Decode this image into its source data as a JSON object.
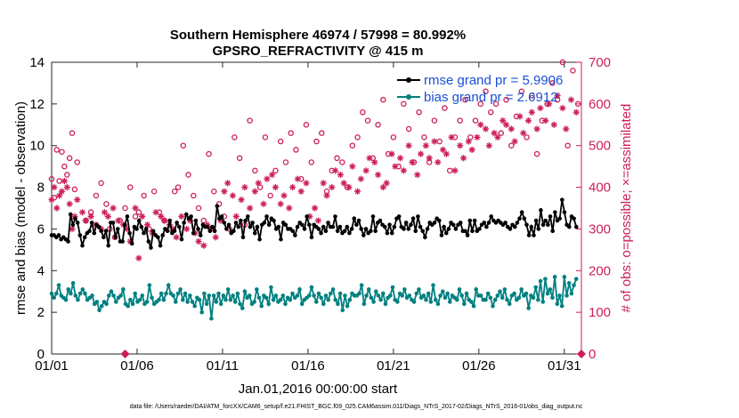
{
  "chart_data": {
    "type": "line",
    "title": "Southern Hemisphere 46974 / 57998 = 80.992%",
    "subtitle": "GPSRO_REFRACTIVITY @ 415 m",
    "xlabel": "Jan.01,2016 00:00:00 start",
    "ylabel_left": "rmse and bias (model - observation)",
    "ylabel_right": "# of obs: o=possible; ×=assimilated",
    "footnote": "data file: /Users/raeder/DAI/ATM_forcXX/CAM6_setup/f.e21.FHIST_BGC.f09_025.CAM6assim.011/Diags_NTrS_2017-02/Diags_NTrS_2016-01/obs_diag_output.nc",
    "x_tick_labels": [
      "01/01",
      "01/06",
      "01/11",
      "01/16",
      "01/21",
      "01/26",
      "01/31"
    ],
    "x_tick_days": [
      1,
      6,
      11,
      16,
      21,
      26,
      31
    ],
    "xlim_days": [
      1,
      32
    ],
    "ylim_left": [
      0,
      14
    ],
    "yticks_left": [
      "0",
      "2",
      "4",
      "6",
      "8",
      "10",
      "12",
      "14"
    ],
    "ylim_right": [
      0,
      700
    ],
    "yticks_right": [
      "0",
      "100",
      "200",
      "300",
      "400",
      "500",
      "600",
      "700"
    ],
    "grid": false,
    "legend_position": "top-right",
    "colors": {
      "rmse": "#000000",
      "bias": "#008080",
      "obs": "#cc1f55"
    },
    "series": [
      {
        "name": "rmse grand pr = 5.9906",
        "axis": "left",
        "values": [
          5.7,
          5.7,
          5.6,
          5.7,
          5.5,
          5.6,
          5.5,
          5.4,
          6.7,
          6.2,
          6.5,
          6.3,
          5.7,
          5.2,
          5.6,
          5.8,
          5.9,
          6.3,
          5.8,
          6.2,
          6.1,
          5.9,
          5.6,
          5.9,
          5.2,
          6.3,
          6.3,
          5.6,
          6.0,
          5.4,
          5.4,
          6.2,
          6.6,
          5.8,
          5.3,
          6.1,
          6.0,
          6.4,
          6.1,
          5.8,
          6.0,
          5.4,
          5.1,
          5.9,
          5.7,
          5.6,
          5.2,
          5.7,
          6.0,
          5.9,
          6.4,
          5.8,
          5.9,
          6.3,
          6.1,
          5.5,
          6.3,
          6.7,
          6.5,
          6.6,
          5.8,
          6.4,
          6.0,
          5.7,
          6.2,
          6.1,
          6.1,
          5.9,
          6.1,
          5.9,
          7.1,
          6.5,
          6.6,
          6.3,
          6.0,
          6.2,
          5.8,
          5.9,
          6.3,
          6.1,
          6.4,
          5.6,
          6.4,
          6.6,
          6.1,
          6.3,
          5.8,
          6.1,
          5.5,
          6.2,
          6.3,
          6.6,
          6.2,
          6.5,
          6.4,
          6.0,
          6.1,
          5.5,
          6.3,
          6.2,
          6.0,
          6.0,
          5.9,
          5.7,
          6.1,
          6.3,
          6.2,
          6.0,
          6.6,
          6.2,
          5.6,
          6.2,
          6.1,
          6.0,
          5.8,
          6.1,
          5.9,
          6.3,
          6.1,
          6.1,
          6.6,
          5.9,
          6.1,
          5.8,
          5.9,
          6.1,
          5.8,
          6.0,
          6.5,
          6.2,
          6.4,
          6.0,
          5.7,
          6.0,
          5.8,
          5.9,
          6.6,
          5.9,
          6.3,
          6.4,
          6.2,
          6.1,
          5.8,
          6.2,
          5.8,
          6.1,
          6.5,
          6.6,
          6.1,
          6.0,
          6.3,
          6.0,
          6.2,
          6.5,
          5.9,
          6.6,
          6.1,
          5.9,
          5.6,
          6.0,
          6.3,
          6.2,
          6.3,
          6.5,
          6.4,
          5.7,
          6.1,
          5.8,
          6.0,
          6.3,
          6.2,
          6.0,
          6.2,
          6.3,
          5.9,
          5.9,
          5.7,
          6.4,
          5.9,
          6.4,
          5.9,
          6.0,
          6.2,
          6.3,
          6.1,
          6.3,
          6.6,
          6.4,
          6.3,
          6.4,
          6.3,
          6.2,
          6.3,
          6.1,
          6.0,
          6.2,
          6.1,
          6.3,
          6.5,
          6.8,
          6.5,
          6.2,
          5.7,
          6.1,
          5.7,
          6.4,
          6.0,
          6.9,
          6.2,
          6.4,
          6.2,
          6.6,
          5.9,
          6.8,
          6.4,
          6.5,
          7.4,
          6.8,
          6.2,
          6.1,
          6.6,
          6.5,
          6.1
        ]
      },
      {
        "name": "bias grand pr = 2.6912",
        "axis": "left",
        "values": [
          2.9,
          2.7,
          2.9,
          3.3,
          2.8,
          2.7,
          2.6,
          3.1,
          2.9,
          3.4,
          2.8,
          2.6,
          2.9,
          3.1,
          2.9,
          2.6,
          2.7,
          2.8,
          2.4,
          2.5,
          2.1,
          2.3,
          2.5,
          2.4,
          2.8,
          3.0,
          2.8,
          2.5,
          2.7,
          2.8,
          3.1,
          2.4,
          2.3,
          2.6,
          2.4,
          2.9,
          2.5,
          2.6,
          2.8,
          2.4,
          2.5,
          3.3,
          2.7,
          2.4,
          2.5,
          2.6,
          2.9,
          2.6,
          2.9,
          3.3,
          2.9,
          2.8,
          2.5,
          2.9,
          3.1,
          2.6,
          2.9,
          2.5,
          2.8,
          2.5,
          2.3,
          2.7,
          2.6,
          2.0,
          2.9,
          2.4,
          2.8,
          1.7,
          2.8,
          2.5,
          2.9,
          2.4,
          2.8,
          2.6,
          3.1,
          2.6,
          2.8,
          2.5,
          2.9,
          2.4,
          2.2,
          3.0,
          2.7,
          2.8,
          2.4,
          2.5,
          3.1,
          2.7,
          2.3,
          2.8,
          2.7,
          2.4,
          3.2,
          2.6,
          2.8,
          2.5,
          2.6,
          2.8,
          2.4,
          2.7,
          2.6,
          2.9,
          2.7,
          2.8,
          3.1,
          2.4,
          2.6,
          2.7,
          2.8,
          3.2,
          2.8,
          2.5,
          2.9,
          2.7,
          2.4,
          2.8,
          2.6,
          2.9,
          3.1,
          2.6,
          2.4,
          2.9,
          2.1,
          2.8,
          2.3,
          2.6,
          2.9,
          2.8,
          2.8,
          2.9,
          3.3,
          2.4,
          2.8,
          3.1,
          2.7,
          2.5,
          3.0,
          2.8,
          2.6,
          2.9,
          2.4,
          2.7,
          2.8,
          3.2,
          2.6,
          2.5,
          2.9,
          2.8,
          3.1,
          2.7,
          2.8,
          2.6,
          2.5,
          2.9,
          3.1,
          2.7,
          2.8,
          2.6,
          2.9,
          2.5,
          3.3,
          2.6,
          2.4,
          2.8,
          3.0,
          2.7,
          2.9,
          2.5,
          2.8,
          2.7,
          2.6,
          3.1,
          2.8,
          2.4,
          2.9,
          2.6,
          2.5,
          2.3,
          3.1,
          2.8,
          2.8,
          2.6,
          2.6,
          2.9,
          2.7,
          2.3,
          2.6,
          2.8,
          3.0,
          2.7,
          3.1,
          2.6,
          2.4,
          2.8,
          2.9,
          2.6,
          2.7,
          3.1,
          2.8,
          2.9,
          2.2,
          2.8,
          2.7,
          3.2,
          2.6,
          3.5,
          2.5,
          3.6,
          2.9,
          3.1,
          2.7,
          3.7,
          2.4,
          2.8,
          2.3,
          3.7,
          2.8,
          3.4,
          2.9,
          3.3,
          3.6
        ]
      },
      {
        "name": "possible",
        "axis": "right",
        "marker": "o",
        "x": [
          1.0,
          1.15,
          1.3,
          1.45,
          1.6,
          1.75,
          1.9,
          2.05,
          2.2,
          2.35,
          2.5,
          3.0,
          3.3,
          3.6,
          3.9,
          4.2,
          4.4,
          4.7,
          5.0,
          5.3,
          5.6,
          5.9,
          6.1,
          6.4,
          6.7,
          7.0,
          7.3,
          7.6,
          7.9,
          8.2,
          8.4,
          8.7,
          9.0,
          9.3,
          9.6,
          9.9,
          10.2,
          10.5,
          10.8,
          11.1,
          11.4,
          11.7,
          12.0,
          12.3,
          12.6,
          12.9,
          13.2,
          13.5,
          13.8,
          14.1,
          14.4,
          14.7,
          15.0,
          15.3,
          15.6,
          15.9,
          16.2,
          16.5,
          16.8,
          17.1,
          17.4,
          17.7,
          18.0,
          18.3,
          18.6,
          18.9,
          19.2,
          19.5,
          19.8,
          20.1,
          20.4,
          20.7,
          21.0,
          21.3,
          21.6,
          21.9,
          22.2,
          22.5,
          22.8,
          23.1,
          23.4,
          23.7,
          24.0,
          24.3,
          24.6,
          24.9,
          25.2,
          25.5,
          25.8,
          26.1,
          26.4,
          26.7,
          27.0,
          27.3,
          27.6,
          27.9,
          28.2,
          28.5,
          28.8,
          29.1,
          29.4,
          29.7,
          30.0,
          30.3,
          30.6,
          30.9,
          31.2,
          31.5,
          31.8
        ],
        "values": [
          420,
          375,
          490,
          415,
          485,
          450,
          430,
          470,
          530,
          395,
          460,
          320,
          340,
          380,
          410,
          360,
          300,
          280,
          320,
          350,
          400,
          330,
          340,
          380,
          300,
          390,
          340,
          320,
          300,
          390,
          400,
          500,
          430,
          380,
          350,
          320,
          480,
          390,
          360,
          330,
          300,
          520,
          470,
          310,
          560,
          440,
          400,
          520,
          380,
          440,
          510,
          460,
          530,
          490,
          420,
          550,
          460,
          510,
          530,
          390,
          440,
          470,
          460,
          400,
          500,
          520,
          580,
          560,
          470,
          550,
          610,
          480,
          520,
          450,
          600,
          540,
          460,
          580,
          520,
          460,
          560,
          510,
          590,
          440,
          520,
          560,
          610,
          520,
          560,
          600,
          630,
          580,
          600,
          530,
          610,
          500,
          570,
          630,
          520,
          620,
          480,
          560,
          600,
          650,
          610,
          700,
          500,
          680,
          600
        ]
      },
      {
        "name": "assimilated",
        "axis": "right",
        "marker": "*",
        "x": [
          1.0,
          1.15,
          1.3,
          1.45,
          1.6,
          1.75,
          1.9,
          2.05,
          2.2,
          2.35,
          2.5,
          2.8,
          3.0,
          3.3,
          3.6,
          3.9,
          4.1,
          4.3,
          4.6,
          4.9,
          5.2,
          5.4,
          5.6,
          5.9,
          6.1,
          6.3,
          6.6,
          6.9,
          7.1,
          7.4,
          7.6,
          7.9,
          8.1,
          8.3,
          8.6,
          8.9,
          9.1,
          9.4,
          9.6,
          9.9,
          10.1,
          10.3,
          10.6,
          10.9,
          11.1,
          11.3,
          11.6,
          11.8,
          12.1,
          12.3,
          12.6,
          12.9,
          13.1,
          13.4,
          13.6,
          13.9,
          14.1,
          14.4,
          14.6,
          14.9,
          15.1,
          15.4,
          15.6,
          15.9,
          16.1,
          16.4,
          16.6,
          16.9,
          17.1,
          17.4,
          17.6,
          17.9,
          18.1,
          18.4,
          18.6,
          18.9,
          19.1,
          19.4,
          19.6,
          19.9,
          20.1,
          20.4,
          20.6,
          20.9,
          21.1,
          21.4,
          21.6,
          21.9,
          22.1,
          22.4,
          22.6,
          22.9,
          23.1,
          23.4,
          23.6,
          23.9,
          24.1,
          24.4,
          24.6,
          24.9,
          25.1,
          25.4,
          25.6,
          25.9,
          26.1,
          26.4,
          26.6,
          26.9,
          27.1,
          27.4,
          27.6,
          27.9,
          28.1,
          28.4,
          28.6,
          28.9,
          29.1,
          29.4,
          29.6,
          29.9,
          30.1,
          30.4,
          30.6,
          30.9,
          31.1,
          31.4,
          31.7
        ],
        "values": [
          370,
          400,
          350,
          380,
          390,
          415,
          400,
          360,
          300,
          330,
          370,
          340,
          320,
          330,
          310,
          300,
          340,
          330,
          350,
          320,
          310,
          300,
          270,
          350,
          230,
          330,
          310,
          290,
          340,
          330,
          320,
          310,
          300,
          280,
          330,
          300,
          320,
          290,
          270,
          260,
          310,
          300,
          280,
          320,
          390,
          410,
          380,
          330,
          370,
          400,
          350,
          390,
          410,
          360,
          420,
          430,
          400,
          360,
          380,
          350,
          400,
          420,
          390,
          410,
          330,
          350,
          320,
          410,
          380,
          400,
          440,
          430,
          410,
          400,
          450,
          390,
          420,
          440,
          470,
          460,
          430,
          400,
          410,
          480,
          450,
          470,
          440,
          500,
          460,
          430,
          480,
          500,
          470,
          510,
          460,
          490,
          480,
          520,
          440,
          500,
          470,
          510,
          490,
          520,
          550,
          540,
          500,
          530,
          520,
          560,
          550,
          540,
          510,
          570,
          530,
          560,
          580,
          540,
          590,
          560,
          600,
          550,
          620,
          590,
          540,
          610,
          580
        ]
      }
    ]
  }
}
